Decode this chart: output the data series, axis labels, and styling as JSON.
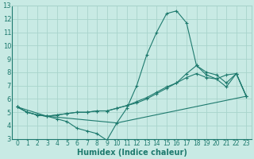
{
  "xlabel": "Humidex (Indice chaleur)",
  "xlim": [
    -0.5,
    23.5
  ],
  "ylim": [
    3,
    13
  ],
  "xticks": [
    0,
    1,
    2,
    3,
    4,
    5,
    6,
    7,
    8,
    9,
    10,
    11,
    12,
    13,
    14,
    15,
    16,
    17,
    18,
    19,
    20,
    21,
    22,
    23
  ],
  "yticks": [
    3,
    4,
    5,
    6,
    7,
    8,
    9,
    10,
    11,
    12,
    13
  ],
  "bg_color": "#c8eae4",
  "line_color": "#1e7a6e",
  "grid_color": "#a8d4cc",
  "lines": [
    {
      "x": [
        0,
        1,
        2,
        3,
        4,
        5,
        6,
        7,
        8,
        9,
        10,
        11,
        12,
        13,
        14,
        15,
        16,
        17,
        18,
        19,
        20,
        21,
        22,
        23
      ],
      "y": [
        5.4,
        5.0,
        4.8,
        4.7,
        4.5,
        4.3,
        3.8,
        3.6,
        3.4,
        2.9,
        4.2,
        5.3,
        7.0,
        9.3,
        11.0,
        12.4,
        12.6,
        11.7,
        8.5,
        7.8,
        7.5,
        7.8,
        7.9,
        6.2
      ]
    },
    {
      "x": [
        0,
        1,
        2,
        3,
        4,
        5,
        6,
        7,
        8,
        9,
        10,
        11,
        12,
        13,
        14,
        15,
        16,
        17,
        18,
        19,
        20,
        21,
        22,
        23
      ],
      "y": [
        5.4,
        5.0,
        4.8,
        4.7,
        4.8,
        4.9,
        5.0,
        5.0,
        5.1,
        5.1,
        5.3,
        5.5,
        5.7,
        6.0,
        6.4,
        6.8,
        7.2,
        7.9,
        8.5,
        8.0,
        7.8,
        7.2,
        7.9,
        6.2
      ]
    },
    {
      "x": [
        0,
        1,
        2,
        3,
        4,
        5,
        6,
        7,
        8,
        9,
        10,
        11,
        12,
        13,
        14,
        15,
        16,
        17,
        18,
        19,
        20,
        21,
        22,
        23
      ],
      "y": [
        5.4,
        5.0,
        4.8,
        4.7,
        4.8,
        4.9,
        5.0,
        5.0,
        5.1,
        5.1,
        5.3,
        5.5,
        5.8,
        6.1,
        6.5,
        6.9,
        7.2,
        7.6,
        7.9,
        7.6,
        7.5,
        6.9,
        7.9,
        6.2
      ]
    },
    {
      "x": [
        0,
        3,
        10,
        23
      ],
      "y": [
        5.4,
        4.7,
        4.2,
        6.2
      ]
    }
  ]
}
